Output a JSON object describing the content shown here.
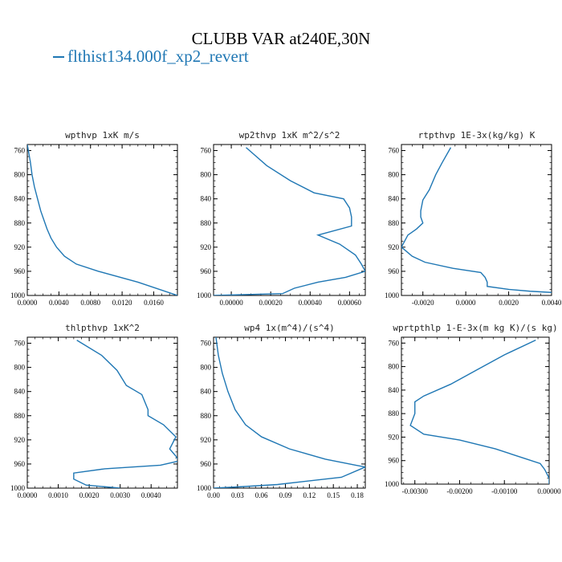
{
  "title": "CLUBB VAR at240E,30N",
  "legend": {
    "label": "flthist134.000f_xp2_revert",
    "color": "#1f77b4"
  },
  "chart_data": [
    {
      "type": "line",
      "title": "wpthvp  1xK m/s",
      "xlim": [
        0,
        0.019
      ],
      "ylim": [
        1000,
        750
      ],
      "xticks": [
        0.0,
        0.004,
        0.008,
        0.012,
        0.016
      ],
      "xtick_labels": [
        "0.0000",
        "0.0040",
        "0.0080",
        "0.0120",
        "0.0160"
      ],
      "yticks": [
        760,
        800,
        840,
        880,
        920,
        960,
        1000
      ],
      "series": [
        {
          "color": "#1f77b4",
          "points": [
            [
              0.0,
              750
            ],
            [
              0.0002,
              765
            ],
            [
              0.0004,
              780
            ],
            [
              0.0006,
              800
            ],
            [
              0.0009,
              820
            ],
            [
              0.0013,
              840
            ],
            [
              0.0017,
              860
            ],
            [
              0.0021,
              875
            ],
            [
              0.0025,
              890
            ],
            [
              0.003,
              905
            ],
            [
              0.0037,
              920
            ],
            [
              0.0047,
              935
            ],
            [
              0.0062,
              948
            ],
            [
              0.009,
              960
            ],
            [
              0.014,
              978
            ],
            [
              0.019,
              1000
            ]
          ]
        }
      ]
    },
    {
      "type": "line",
      "title": "wp2thvp  1xK m^2/s^2",
      "xlim": [
        -9e-05,
        0.00068
      ],
      "ylim": [
        1000,
        750
      ],
      "xticks": [
        0.0,
        0.0002,
        0.0004,
        0.0006
      ],
      "xtick_labels": [
        "0.00000",
        "0.00020",
        "0.00040",
        "0.00060"
      ],
      "yticks": [
        760,
        800,
        840,
        880,
        920,
        960,
        1000
      ],
      "series": [
        {
          "color": "#1f77b4",
          "points": [
            [
              7.5e-05,
              755
            ],
            [
              0.00018,
              785
            ],
            [
              0.0003,
              810
            ],
            [
              0.00042,
              830
            ],
            [
              0.00057,
              840
            ],
            [
              0.0006,
              855
            ],
            [
              0.00061,
              870
            ],
            [
              0.00061,
              885
            ],
            [
              0.00044,
              900
            ],
            [
              0.00055,
              915
            ],
            [
              0.00063,
              933
            ],
            [
              0.00066,
              948
            ],
            [
              0.00068,
              960
            ],
            [
              0.00058,
              970
            ],
            [
              0.00044,
              978
            ],
            [
              0.00032,
              988
            ],
            [
              0.00026,
              997
            ],
            [
              -9e-05,
              1000
            ]
          ]
        }
      ]
    },
    {
      "type": "line",
      "title": "rtpthvp  1E-3x(kg/kg) K",
      "xlim": [
        -0.003,
        0.004
      ],
      "ylim": [
        1000,
        750
      ],
      "xticks": [
        -0.002,
        0.0,
        0.002,
        0.004
      ],
      "xtick_labels": [
        "-0.0020",
        "0.0000",
        "0.0020",
        "0.0040"
      ],
      "yticks": [
        760,
        800,
        840,
        880,
        920,
        960,
        1000
      ],
      "series": [
        {
          "color": "#1f77b4",
          "points": [
            [
              -0.0007,
              755
            ],
            [
              -0.0011,
              780
            ],
            [
              -0.0014,
              800
            ],
            [
              -0.0017,
              825
            ],
            [
              -0.002,
              842
            ],
            [
              -0.0021,
              860
            ],
            [
              -0.0021,
              870
            ],
            [
              -0.002,
              880
            ],
            [
              -0.0023,
              890
            ],
            [
              -0.0027,
              900
            ],
            [
              -0.003,
              920
            ],
            [
              -0.0025,
              935
            ],
            [
              -0.0019,
              945
            ],
            [
              -0.0006,
              955
            ],
            [
              0.0007,
              962
            ],
            [
              0.0009,
              970
            ],
            [
              0.001,
              978
            ],
            [
              0.001,
              985
            ],
            [
              0.002,
              990
            ],
            [
              0.003,
              993
            ],
            [
              0.004,
              995
            ]
          ]
        }
      ]
    },
    {
      "type": "line",
      "title": "thlpthvp  1xK^2",
      "xlim": [
        0,
        0.00485
      ],
      "ylim": [
        1000,
        750
      ],
      "xticks": [
        0.0,
        0.001,
        0.002,
        0.003,
        0.004
      ],
      "xtick_labels": [
        "0.0000",
        "0.0010",
        "0.0020",
        "0.0030",
        "0.0040"
      ],
      "yticks": [
        760,
        800,
        840,
        880,
        920,
        960,
        1000
      ],
      "series": [
        {
          "color": "#1f77b4",
          "points": [
            [
              0.0016,
              755
            ],
            [
              0.0024,
              780
            ],
            [
              0.0029,
              805
            ],
            [
              0.0032,
              830
            ],
            [
              0.0037,
              845
            ],
            [
              0.0039,
              870
            ],
            [
              0.0039,
              880
            ],
            [
              0.0044,
              895
            ],
            [
              0.0048,
              915
            ],
            [
              0.0046,
              935
            ],
            [
              0.0048,
              947
            ],
            [
              0.0049,
              955
            ],
            [
              0.0043,
              962
            ],
            [
              0.0025,
              968
            ],
            [
              0.0015,
              975
            ],
            [
              0.0015,
              985
            ],
            [
              0.0019,
              995
            ],
            [
              0.003,
              1000
            ]
          ]
        }
      ]
    },
    {
      "type": "line",
      "title": "wp4  1x(m^4)/(s^4)",
      "xlim": [
        0,
        0.19
      ],
      "ylim": [
        1000,
        750
      ],
      "xticks": [
        0.0,
        0.03,
        0.06,
        0.09,
        0.12,
        0.15,
        0.18
      ],
      "xtick_labels": [
        "0.00",
        "0.03",
        "0.06",
        "0.09",
        "0.12",
        "0.15",
        "0.18"
      ],
      "yticks": [
        760,
        800,
        840,
        880,
        920,
        960,
        1000
      ],
      "series": [
        {
          "color": "#1f77b4",
          "points": [
            [
              0.003,
              750
            ],
            [
              0.006,
              780
            ],
            [
              0.011,
              810
            ],
            [
              0.018,
              840
            ],
            [
              0.027,
              870
            ],
            [
              0.04,
              895
            ],
            [
              0.06,
              915
            ],
            [
              0.095,
              935
            ],
            [
              0.14,
              952
            ],
            [
              0.178,
              962
            ],
            [
              0.19,
              965
            ],
            [
              0.16,
              982
            ],
            [
              0.08,
              994
            ],
            [
              0.03,
              998
            ],
            [
              0.0,
              1000
            ]
          ]
        }
      ]
    },
    {
      "type": "line",
      "title": "wprtpthlp  1-E-3x(m kg K)/(s kg)",
      "xlim": [
        -0.0033,
        0.0
      ],
      "ylim": [
        1000,
        750
      ],
      "xticks": [
        -0.003,
        -0.002,
        -0.001,
        0.0
      ],
      "xtick_labels": [
        "-0.00300",
        "-0.00200",
        "-0.00100",
        "0.00000"
      ],
      "yticks": [
        760,
        800,
        840,
        880,
        920,
        960,
        1000
      ],
      "series": [
        {
          "color": "#1f77b4",
          "points": [
            [
              -0.0003,
              755
            ],
            [
              -0.001,
              780
            ],
            [
              -0.0016,
              805
            ],
            [
              -0.0022,
              830
            ],
            [
              -0.0028,
              850
            ],
            [
              -0.003,
              860
            ],
            [
              -0.003,
              880
            ],
            [
              -0.0031,
              900
            ],
            [
              -0.0028,
              915
            ],
            [
              -0.002,
              925
            ],
            [
              -0.0012,
              940
            ],
            [
              -0.0006,
              955
            ],
            [
              -0.0002,
              965
            ],
            [
              -0.0001,
              975
            ],
            [
              0.0,
              990
            ],
            [
              0.0,
              1000
            ]
          ]
        }
      ]
    }
  ]
}
